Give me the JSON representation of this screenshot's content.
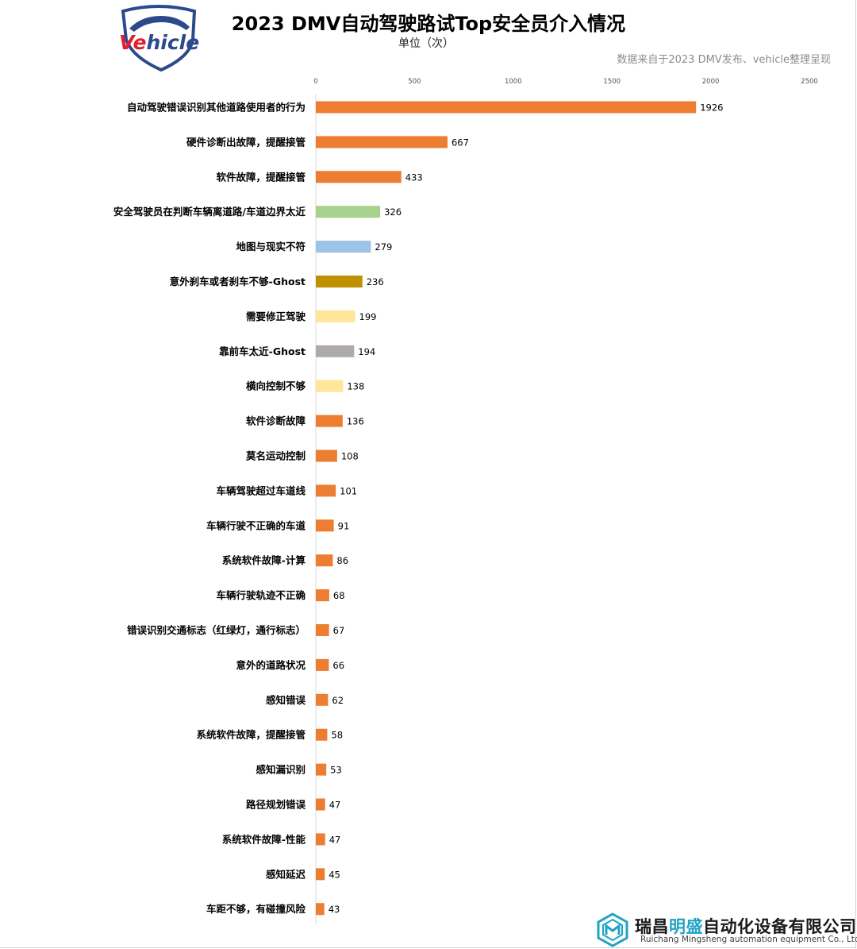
{
  "header": {
    "logo_text": "Vehicle",
    "title": "2023 DMV自动驾驶路试Top安全员介入情况",
    "unit": "单位（次）",
    "source": "数据来自于2023 DMV发布、vehicle整理呈现"
  },
  "footer": {
    "company_cn_part1": "瑞昌",
    "company_cn_highlight": "明盛",
    "company_cn_part2": "自动化设备有限公司",
    "company_en": "Ruichang Mingsheng automation equipment Co., Ltd"
  },
  "colors": {
    "orange": "#ed7d31",
    "green": "#a9d18e",
    "blue": "#9dc3e6",
    "gold": "#bf9000",
    "yellow": "#ffe699",
    "gray": "#aeaaaa",
    "logo_red": "#e0202a",
    "logo_blue": "#2b4a8c",
    "accent_teal": "#1fa3c4"
  },
  "chart_data": {
    "type": "bar",
    "orientation": "horizontal",
    "xlim": [
      0,
      2500
    ],
    "x_ticks": [
      0,
      500,
      1000,
      1500,
      2000,
      2500
    ],
    "tick_position": "top",
    "grid": false,
    "categories": [
      "自动驾驶错误识别其他道路使用者的行为",
      "硬件诊断出故障，提醒接管",
      "软件故障，提醒接管",
      "安全驾驶员在判断车辆离道路/车道边界太近",
      "地图与现实不符",
      "意外刹车或者刹车不够-Ghost",
      "需要修正驾驶",
      "靠前车太近-Ghost",
      "横向控制不够",
      "软件诊断故障",
      "莫名运动控制",
      "车辆驾驶超过车道线",
      "车辆行驶不正确的车道",
      "系统软件故障-计算",
      "车辆行驶轨迹不正确",
      "错误识别交通标志（红绿灯，通行标志）",
      "意外的道路状况",
      "感知错误",
      "系统软件故障，提醒接管",
      "感知漏识别",
      "路径规划错误",
      "系统软件故障-性能",
      "感知延迟",
      "车距不够，有碰撞风险"
    ],
    "values": [
      1926,
      667,
      433,
      326,
      279,
      236,
      199,
      194,
      138,
      136,
      108,
      101,
      91,
      86,
      68,
      67,
      66,
      62,
      58,
      53,
      47,
      47,
      45,
      43
    ],
    "bar_colors": [
      "#ed7d31",
      "#ed7d31",
      "#ed7d31",
      "#a9d18e",
      "#9dc3e6",
      "#bf9000",
      "#ffe699",
      "#aeaaaa",
      "#ffe699",
      "#ed7d31",
      "#ed7d31",
      "#ed7d31",
      "#ed7d31",
      "#ed7d31",
      "#ed7d31",
      "#ed7d31",
      "#ed7d31",
      "#ed7d31",
      "#ed7d31",
      "#ed7d31",
      "#ed7d31",
      "#ed7d31",
      "#ed7d31",
      "#ed7d31"
    ]
  }
}
